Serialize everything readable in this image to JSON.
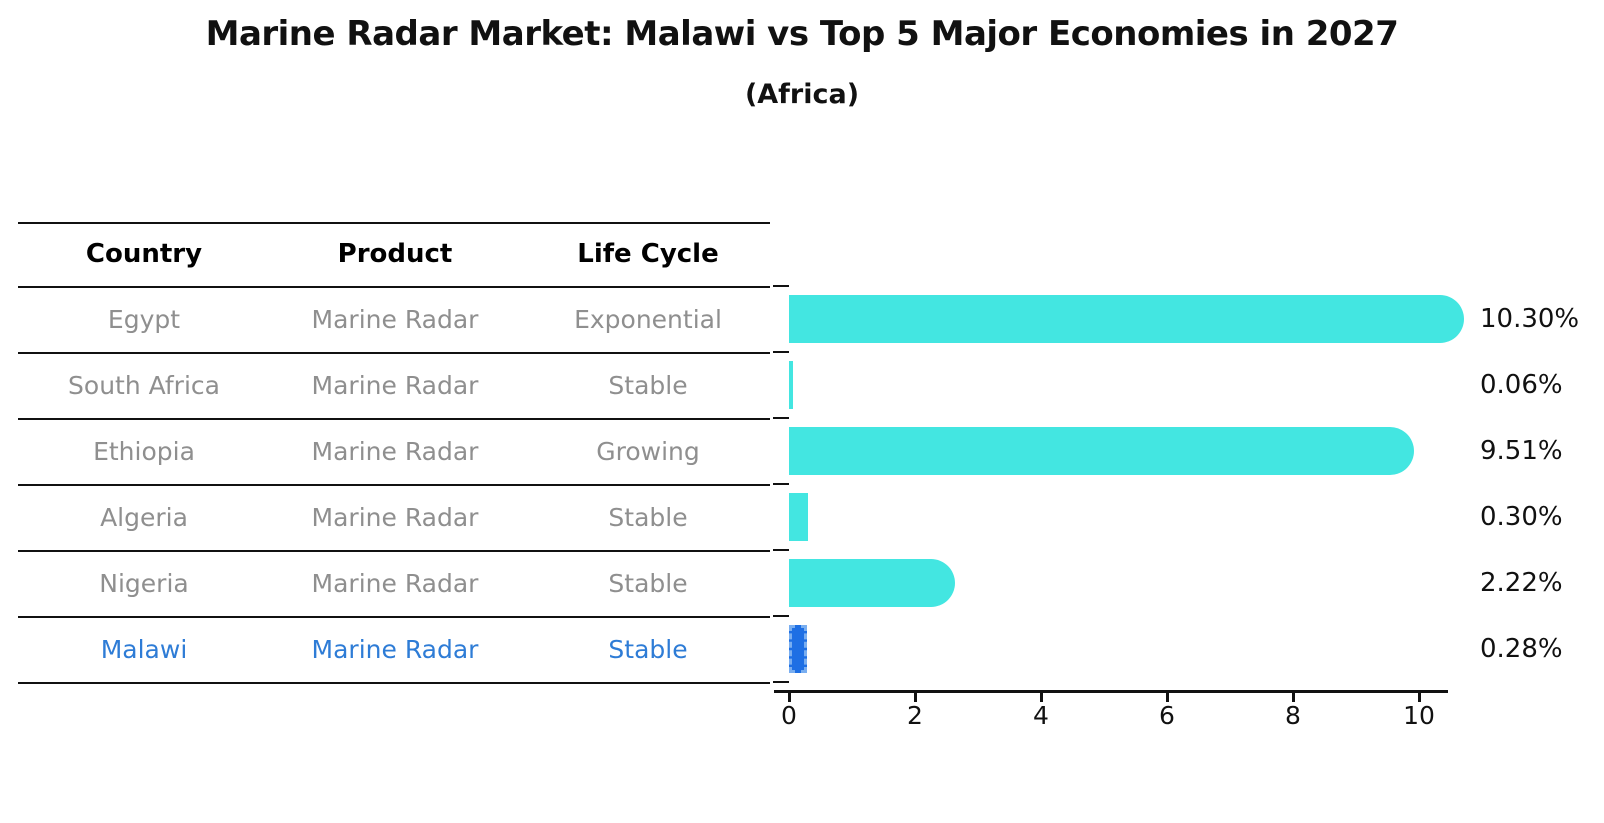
{
  "title": "Marine Radar Market: Malawi vs Top 5 Major Economies in 2027",
  "subtitle": "(Africa)",
  "table": {
    "headers": [
      "Country",
      "Product",
      "Life Cycle"
    ]
  },
  "colors": {
    "bar_default": "#43e6e1",
    "bar_highlight": "#1e6fe4",
    "highlight_text": "#2e7cd6",
    "table_text": "#8f8f8f",
    "axis_and_text": "#111111"
  },
  "chart_data": {
    "type": "bar",
    "orientation": "horizontal",
    "title": "Marine Radar Market: Malawi vs Top 5 Major Economies in 2027",
    "subtitle": "(Africa)",
    "categories": [
      "Egypt",
      "South Africa",
      "Ethiopia",
      "Algeria",
      "Nigeria",
      "Malawi"
    ],
    "values": [
      10.3,
      0.06,
      9.51,
      0.3,
      2.22,
      0.28
    ],
    "value_labels": [
      "10.30%",
      "0.06%",
      "9.51%",
      "0.30%",
      "2.22%",
      "0.28%"
    ],
    "xlim": [
      0,
      10.7
    ],
    "x_ticks": [
      0,
      2,
      4,
      6,
      8,
      10
    ],
    "grid": false,
    "legend": false,
    "highlight_category": "Malawi",
    "rows": [
      {
        "country": "Egypt",
        "product": "Marine Radar",
        "life_cycle": "Exponential",
        "value": 10.3,
        "label": "10.30%",
        "highlight": false
      },
      {
        "country": "South Africa",
        "product": "Marine Radar",
        "life_cycle": "Stable",
        "value": 0.06,
        "label": "0.06%",
        "highlight": false
      },
      {
        "country": "Ethiopia",
        "product": "Marine Radar",
        "life_cycle": "Growing",
        "value": 9.51,
        "label": "9.51%",
        "highlight": false
      },
      {
        "country": "Algeria",
        "product": "Marine Radar",
        "life_cycle": "Stable",
        "value": 0.3,
        "label": "0.30%",
        "highlight": false
      },
      {
        "country": "Nigeria",
        "product": "Marine Radar",
        "life_cycle": "Stable",
        "value": 2.22,
        "label": "2.22%",
        "highlight": false
      },
      {
        "country": "Malawi",
        "product": "Marine Radar",
        "life_cycle": "Stable",
        "value": 0.28,
        "label": "0.28%",
        "highlight": true
      }
    ]
  }
}
